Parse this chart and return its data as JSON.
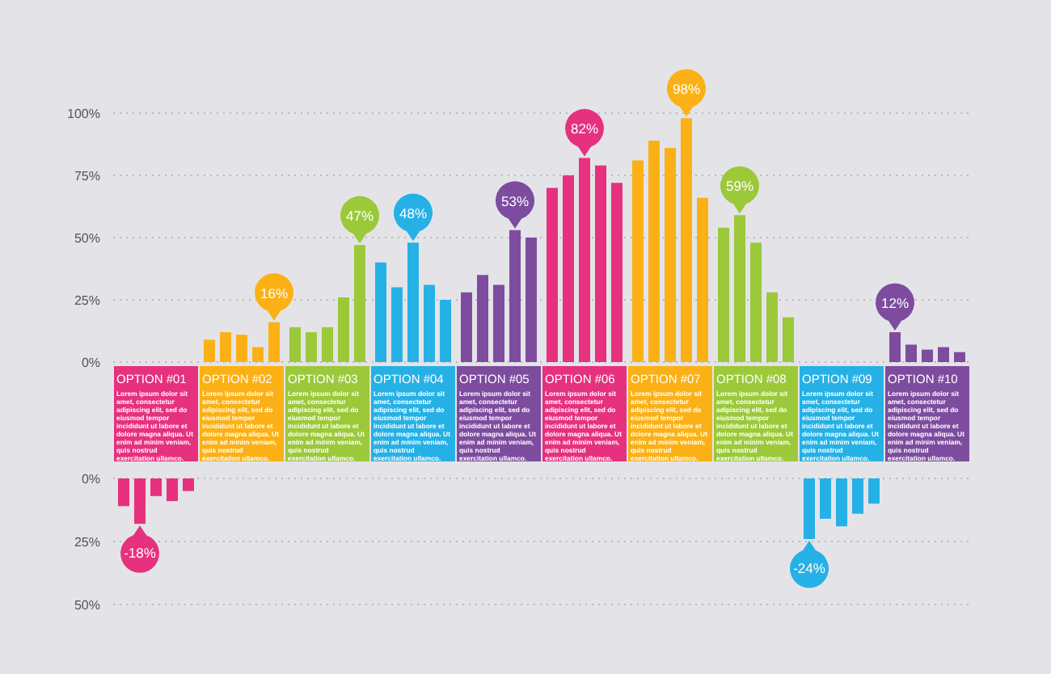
{
  "chart_data": [
    {
      "type": "bar",
      "categories": [
        "OPTION #01",
        "OPTION #02",
        "OPTION #03",
        "OPTION #04",
        "OPTION #05",
        "OPTION #06",
        "OPTION #07",
        "OPTION #08",
        "OPTION #09",
        "OPTION #10"
      ],
      "series": [
        {
          "colors": [
            "#e6317f",
            "#fbb116",
            "#9bc93a",
            "#26b1e6",
            "#7d4c9f",
            "#e6317f",
            "#fbb116",
            "#9bc93a",
            "#26b1e6",
            "#7d4c9f"
          ],
          "values": [
            null,
            9,
            14,
            40,
            28,
            70,
            81,
            54,
            null,
            12
          ],
          "value_labels": [
            null,
            null,
            null,
            null,
            null,
            null,
            null,
            null,
            null,
            "12%"
          ]
        },
        {
          "colors": [
            "#e6317f",
            "#fbb116",
            "#9bc93a",
            "#26b1e6",
            "#7d4c9f",
            "#e6317f",
            "#fbb116",
            "#9bc93a",
            "#26b1e6",
            "#7d4c9f"
          ],
          "values": [
            null,
            12,
            12,
            30,
            35,
            75,
            89,
            59,
            null,
            7
          ],
          "value_labels": [
            null,
            null,
            null,
            null,
            null,
            null,
            null,
            "59%",
            null,
            null
          ]
        },
        {
          "colors": [
            "#e6317f",
            "#fbb116",
            "#9bc93a",
            "#26b1e6",
            "#7d4c9f",
            "#e6317f",
            "#fbb116",
            "#9bc93a",
            "#26b1e6",
            "#7d4c9f"
          ],
          "values": [
            null,
            11,
            14,
            48,
            31,
            82,
            86,
            48,
            null,
            5
          ],
          "value_labels": [
            null,
            null,
            null,
            "48%",
            null,
            "82%",
            null,
            null,
            null,
            null
          ]
        },
        {
          "colors": [
            "#e6317f",
            "#fbb116",
            "#9bc93a",
            "#26b1e6",
            "#7d4c9f",
            "#e6317f",
            "#fbb116",
            "#9bc93a",
            "#26b1e6",
            "#7d4c9f"
          ],
          "values": [
            null,
            6,
            26,
            31,
            53,
            79,
            98,
            28,
            null,
            6
          ],
          "value_labels": [
            null,
            null,
            null,
            null,
            "53%",
            null,
            "98%",
            null,
            null,
            null
          ]
        },
        {
          "colors": [
            "#e6317f",
            "#fbb116",
            "#9bc93a",
            "#26b1e6",
            "#7d4c9f",
            "#e6317f",
            "#fbb116",
            "#9bc93a",
            "#26b1e6",
            "#7d4c9f"
          ],
          "values": [
            null,
            16,
            47,
            25,
            50,
            72,
            66,
            18,
            null,
            4
          ],
          "value_labels": [
            null,
            "16%",
            "47%",
            null,
            null,
            null,
            null,
            null,
            null,
            null
          ]
        }
      ],
      "annotations": [
        "Lorem ipsum dolor sit amet, consectetur adipiscing elit, sed do eiusmod tempor incididunt ut labore et dolore magna aliqua. Ut enim ad minim veniam, quis nostrud exercitation ullamco.",
        "Lorem ipsum dolor sit amet, consectetur adipiscing elit, sed do eiusmod tempor incididunt ut labore et dolore magna aliqua. Ut enim ad minim veniam, quis nostrud exercitation ullamco.",
        "Lorem ipsum dolor sit amet, consectetur adipiscing elit, sed do eiusmod tempor incididunt ut labore et dolore magna aliqua. Ut enim ad minim veniam, quis nostrud exercitation ullamco.",
        "Lorem ipsum dolor sit amet, consectetur adipiscing elit, sed do eiusmod tempor incididunt ut labore et dolore magna aliqua. Ut enim ad minim veniam, quis nostrud exercitation ullamco.",
        "Lorem ipsum dolor sit amet, consectetur adipiscing elit, sed do eiusmod tempor incididunt ut labore et dolore magna aliqua. Ut enim ad minim veniam, quis nostrud exercitation ullamco.",
        "Lorem ipsum dolor sit amet, consectetur adipiscing elit, sed do eiusmod tempor incididunt ut labore et dolore magna aliqua. Ut enim ad minim veniam, quis nostrud exercitation ullamco.",
        "Lorem ipsum dolor sit amet, consectetur adipiscing elit, sed do eiusmod tempor incididunt ut labore et dolore magna aliqua. Ut enim ad minim veniam, quis nostrud exercitation ullamco.",
        "Lorem ipsum dolor sit amet, consectetur adipiscing elit, sed do eiusmod tempor incididunt ut labore et dolore magna aliqua. Ut enim ad minim veniam, quis nostrud exercitation ullamco.",
        "Lorem ipsum dolor sit amet, consectetur adipiscing elit, sed do eiusmod tempor incididunt ut labore et dolore magna aliqua. Ut enim ad minim veniam, quis nostrud exercitation ullamco.",
        "Lorem ipsum dolor sit amet, consectetur adipiscing elit, sed do eiusmod tempor incididunt ut labore et dolore magna aliqua. Ut enim ad minim veniam, quis nostrud exercitation ullamco."
      ],
      "ylim": [
        0,
        100
      ],
      "yticks": [
        {
          "value": 0,
          "label": "0%"
        },
        {
          "value": 25,
          "label": "25%"
        },
        {
          "value": 50,
          "label": "50%"
        },
        {
          "value": 75,
          "label": "75%"
        },
        {
          "value": 100,
          "label": "100%"
        }
      ],
      "grid": "y",
      "legend": false
    },
    {
      "type": "bar",
      "categories": [
        null,
        null,
        null,
        null,
        null,
        null,
        null,
        null,
        null,
        null
      ],
      "tick_labels": "y",
      "series": [
        {
          "colors": [
            "#e6317f",
            "#fbb116",
            "#9bc93a",
            "#26b1e6",
            "#7d4c9f",
            "#e6317f",
            "#fbb116",
            "#9bc93a",
            "#26b1e6",
            "#7d4c9f"
          ],
          "values": [
            -11,
            null,
            null,
            null,
            null,
            null,
            null,
            null,
            -24,
            null
          ],
          "value_labels": [
            null,
            null,
            null,
            null,
            null,
            null,
            null,
            null,
            "-24%",
            null
          ]
        },
        {
          "colors": [
            "#e6317f",
            "#fbb116",
            "#9bc93a",
            "#26b1e6",
            "#7d4c9f",
            "#e6317f",
            "#fbb116",
            "#9bc93a",
            "#26b1e6",
            "#7d4c9f"
          ],
          "values": [
            -18,
            null,
            null,
            null,
            null,
            null,
            null,
            null,
            -16,
            null
          ],
          "value_labels": [
            "-18%",
            null,
            null,
            null,
            null,
            null,
            null,
            null,
            null,
            null
          ]
        },
        {
          "colors": [
            "#e6317f",
            "#fbb116",
            "#9bc93a",
            "#26b1e6",
            "#7d4c9f",
            "#e6317f",
            "#fbb116",
            "#9bc93a",
            "#26b1e6",
            "#7d4c9f"
          ],
          "values": [
            -7,
            null,
            null,
            null,
            null,
            null,
            null,
            null,
            -19,
            null
          ],
          "value_labels": [
            null,
            null,
            null,
            null,
            null,
            null,
            null,
            null,
            null,
            null
          ]
        },
        {
          "colors": [
            "#e6317f",
            "#fbb116",
            "#9bc93a",
            "#26b1e6",
            "#7d4c9f",
            "#e6317f",
            "#fbb116",
            "#9bc93a",
            "#26b1e6",
            "#7d4c9f"
          ],
          "values": [
            -9,
            null,
            null,
            null,
            null,
            null,
            null,
            null,
            -14,
            null
          ],
          "value_labels": [
            null,
            null,
            null,
            null,
            null,
            null,
            null,
            null,
            null,
            null
          ]
        },
        {
          "colors": [
            "#e6317f",
            "#fbb116",
            "#9bc93a",
            "#26b1e6",
            "#7d4c9f",
            "#e6317f",
            "#fbb116",
            "#9bc93a",
            "#26b1e6",
            "#7d4c9f"
          ],
          "values": [
            -5,
            null,
            null,
            null,
            null,
            null,
            null,
            null,
            -10,
            null
          ],
          "value_labels": [
            null,
            null,
            null,
            null,
            null,
            null,
            null,
            null,
            null,
            null
          ]
        }
      ],
      "ylim": [
        -50,
        0
      ],
      "yticks": [
        {
          "value": -50,
          "label": "50%"
        },
        {
          "value": -25,
          "label": "25%"
        },
        {
          "value": 0,
          "label": "0%"
        }
      ],
      "grid": "y",
      "legend": false
    }
  ]
}
